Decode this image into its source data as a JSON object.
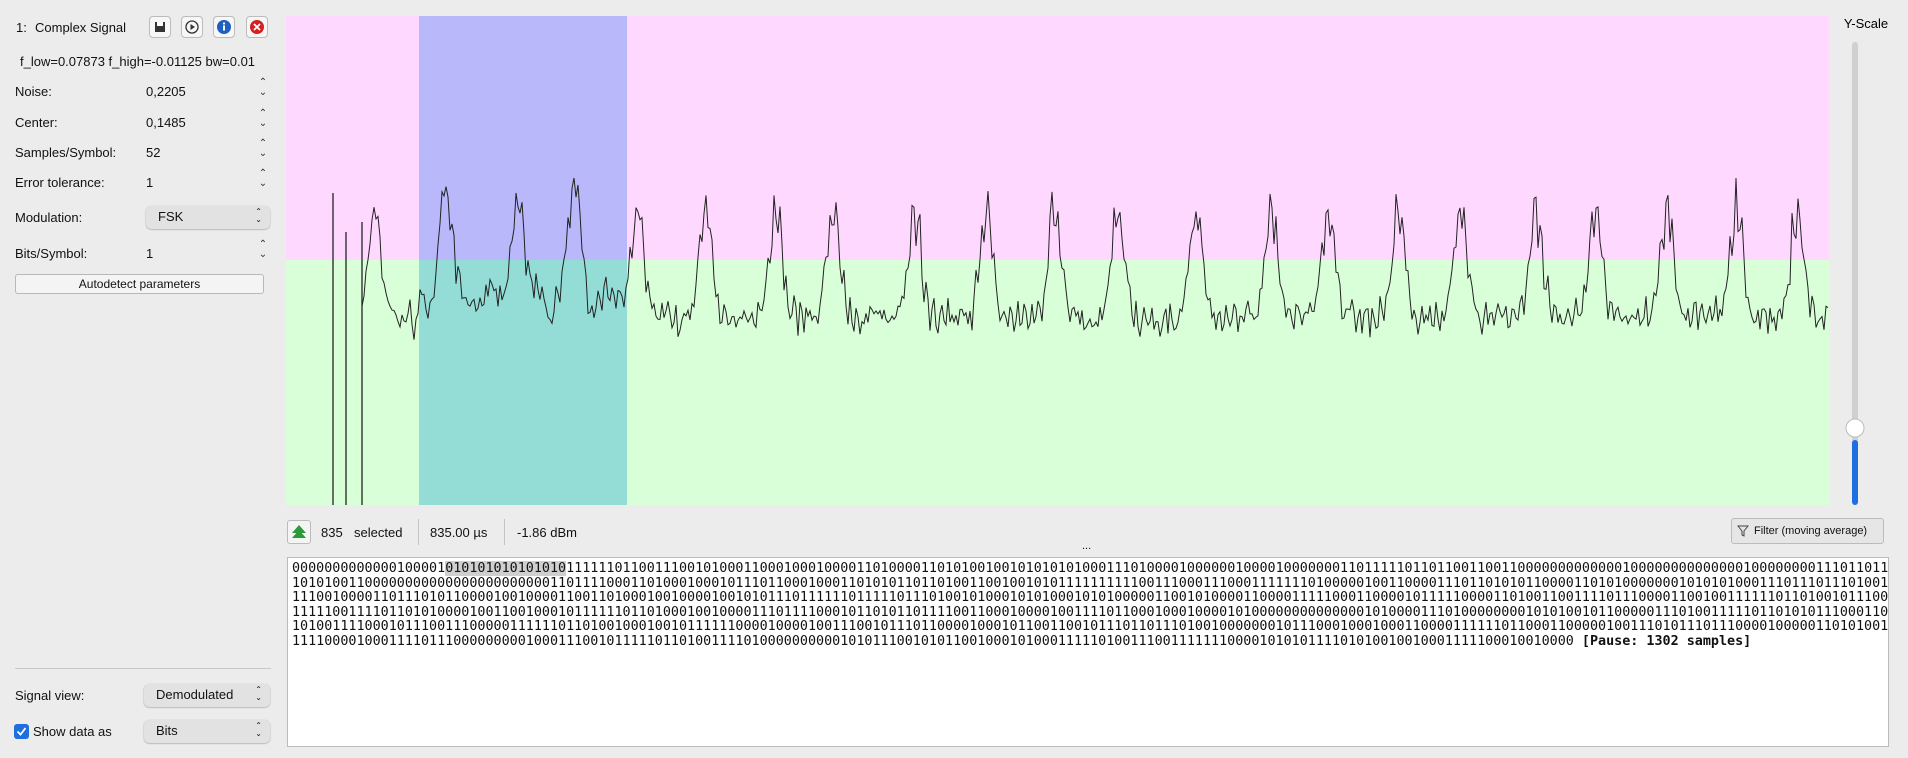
{
  "header": {
    "index": "1:",
    "title": "Complex Signal"
  },
  "filter_info": "f_low=0.07873 f_high=-0.01125 bw=0.01",
  "params": [
    {
      "label": "Noise:",
      "value": "0,2205"
    },
    {
      "label": "Center:",
      "value": "0,1485"
    },
    {
      "label": "Samples/Symbol:",
      "value": "52"
    },
    {
      "label": "Error tolerance:",
      "value": "1"
    }
  ],
  "modulation": {
    "label": "Modulation:",
    "value": "FSK"
  },
  "bits_per_symbol": {
    "label": "Bits/Symbol:",
    "value": "1"
  },
  "autodetect_button": "Autodetect parameters",
  "signal_view": {
    "label": "Signal view:",
    "value": "Demodulated"
  },
  "show_data_as": {
    "label": "Show data as",
    "value": "Bits"
  },
  "y_scale_label": "Y-Scale",
  "status": {
    "selected_count": "835",
    "selected_label": "selected",
    "duration": "835.00 µs",
    "power": "-1.86 dBm"
  },
  "filter_button": "Filter (moving average)",
  "ellipsis": "...",
  "bits": {
    "first_line_before": "0000000000000100001",
    "first_line_selected": "010101010101010",
    "first_line_after": "111111011001110010100011000100010000110100001101010010010101010100011101000010000001000010000000110111110110110011001100000000000001000000000000001000000001110110110000000000011",
    "lines": [
      "101010011000000000000000000000001101111000110100010001011101100010001101010110110100110010010101111111111001110001110001111111010000010011000011101101010110000110101000000010101010001110111011101001011101",
      "111001000011011101011000010010000110011010001001000010010101110111111011111011101001010001010100010101000001100101000011000011111000110000101111100001101001100111101110000110010011111101101001011100101110",
      "111110011110110101000010011001000101111110110100010010000111011110001011010110111100110001000010011110110001000100001010000000000000010100001110100000000101010010110000011101001111101101010111000110000101",
      "101001111000101110011100000111111011010010001001011111100001000010011100101110110000100010110011001011101101110100100000001011100010001000110000111111011000110000010011101011101110000100000110101001110001000",
      "111100001000111101110000000001000111001011111011010011110100000000001010111001010110010001010001111101001110011111110000101010111101010010010001111100010010000"
    ],
    "pause": "[Pause: 1302 samples]"
  }
}
